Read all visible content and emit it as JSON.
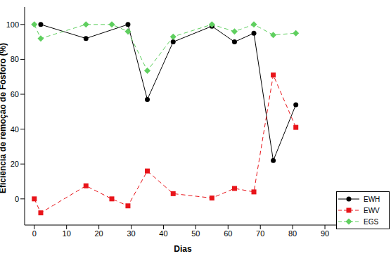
{
  "chart_data": {
    "type": "line",
    "x_label": "Dias",
    "y_label": "Eficiência de remoção de Fósforo (%)",
    "xlim": [
      -3,
      95
    ],
    "xticks": [
      0,
      10,
      20,
      30,
      40,
      50,
      60,
      70,
      80,
      90
    ],
    "ylim": [
      -15,
      110
    ],
    "yticks": [
      0,
      20,
      40,
      60,
      80,
      100
    ],
    "grid": false,
    "legend": "lower right",
    "series": [
      {
        "name": "EWH",
        "color": "#000000",
        "marker": "circle",
        "line_style": "solid",
        "x": [
          2,
          16,
          29,
          35,
          43,
          55,
          62,
          68,
          74,
          81
        ],
        "values": [
          100,
          92,
          100,
          57,
          90,
          99,
          90,
          95,
          22,
          54
        ]
      },
      {
        "name": "EWV",
        "color": "#e8141a",
        "marker": "square",
        "line_style": "dashed",
        "x": [
          0,
          2,
          16,
          24,
          29,
          35,
          43,
          55,
          62,
          68,
          74,
          81
        ],
        "values": [
          0,
          -8,
          7.5,
          0,
          -4,
          16,
          3,
          0.5,
          6,
          4,
          71,
          41
        ]
      },
      {
        "name": "EGS",
        "color": "#5fcf5f",
        "marker": "diamond",
        "line_style": "dashed",
        "x": [
          0,
          2,
          16,
          24,
          29,
          35,
          43,
          55,
          62,
          68,
          74,
          81
        ],
        "values": [
          100,
          92,
          100,
          100,
          96,
          73.5,
          93,
          100,
          96,
          100,
          94,
          95
        ]
      }
    ]
  }
}
